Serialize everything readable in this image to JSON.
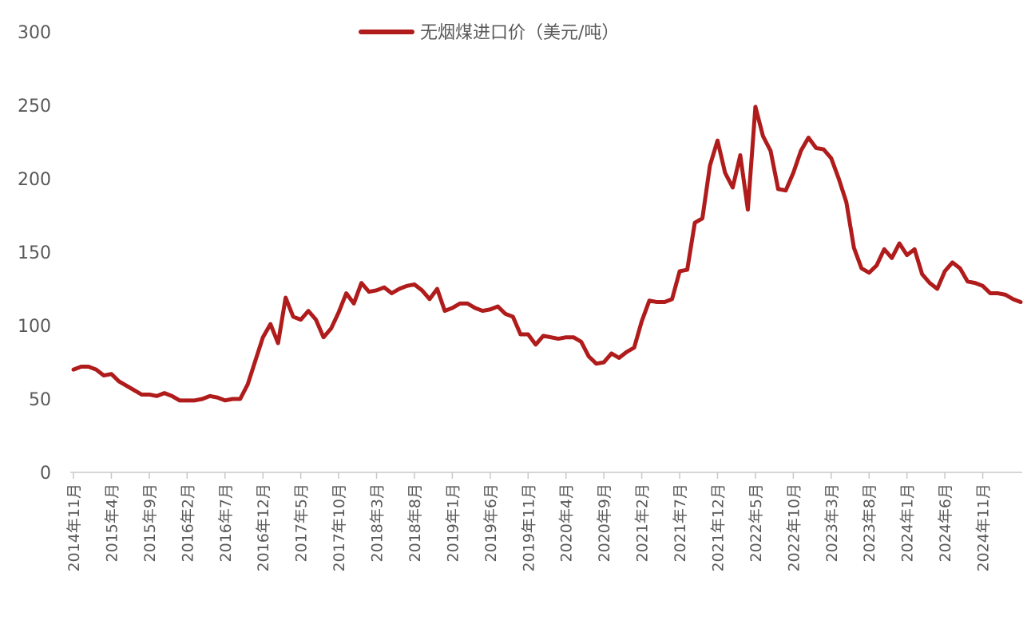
{
  "chart_data": {
    "type": "line",
    "title": "",
    "xlabel": "",
    "ylabel": "",
    "ylim": [
      0,
      300
    ],
    "yticks": [
      0,
      50,
      100,
      150,
      200,
      250,
      300
    ],
    "grid": false,
    "legend": {
      "position": "top-center"
    },
    "colors": {
      "series": "#b01b1b",
      "axis": "#c8c8c8",
      "text": "#595959"
    },
    "x_tick_labels": [
      "2014年11月",
      "2015年4月",
      "2015年9月",
      "2016年2月",
      "2016年7月",
      "2016年12月",
      "2017年5月",
      "2017年10月",
      "2018年3月",
      "2018年8月",
      "2019年1月",
      "2019年6月",
      "2019年11月",
      "2020年4月",
      "2020年9月",
      "2021年2月",
      "2021年7月",
      "2021年12月",
      "2022年5月",
      "2022年10月",
      "2023年3月",
      "2023年8月",
      "2024年1月",
      "2024年6月",
      "2024年11月"
    ],
    "x_start": "2014年11月",
    "series": [
      {
        "name": "无烟煤进口价（美元/吨）",
        "values": [
          70,
          72,
          72,
          70,
          66,
          67,
          62,
          59,
          56,
          53,
          53,
          52,
          54,
          52,
          49,
          49,
          49,
          50,
          52,
          51,
          49,
          50,
          50,
          60,
          76,
          92,
          101,
          88,
          119,
          106,
          104,
          110,
          104,
          92,
          98,
          109,
          122,
          115,
          129,
          123,
          124,
          126,
          122,
          125,
          127,
          128,
          124,
          118,
          125,
          110,
          112,
          115,
          115,
          112,
          110,
          111,
          113,
          108,
          106,
          94,
          94,
          87,
          93,
          92,
          91,
          92,
          92,
          89,
          79,
          74,
          75,
          81,
          78,
          82,
          85,
          103,
          117,
          116,
          116,
          118,
          137,
          138,
          170,
          173,
          209,
          226,
          204,
          194,
          216,
          179,
          249,
          229,
          219,
          193,
          192,
          204,
          219,
          228,
          221,
          220,
          214,
          200,
          184,
          153,
          139,
          136,
          141,
          152,
          146,
          156,
          148,
          152,
          135,
          129,
          125,
          137,
          143,
          139,
          130,
          129,
          127,
          122,
          122,
          121,
          118,
          116
        ]
      }
    ]
  }
}
